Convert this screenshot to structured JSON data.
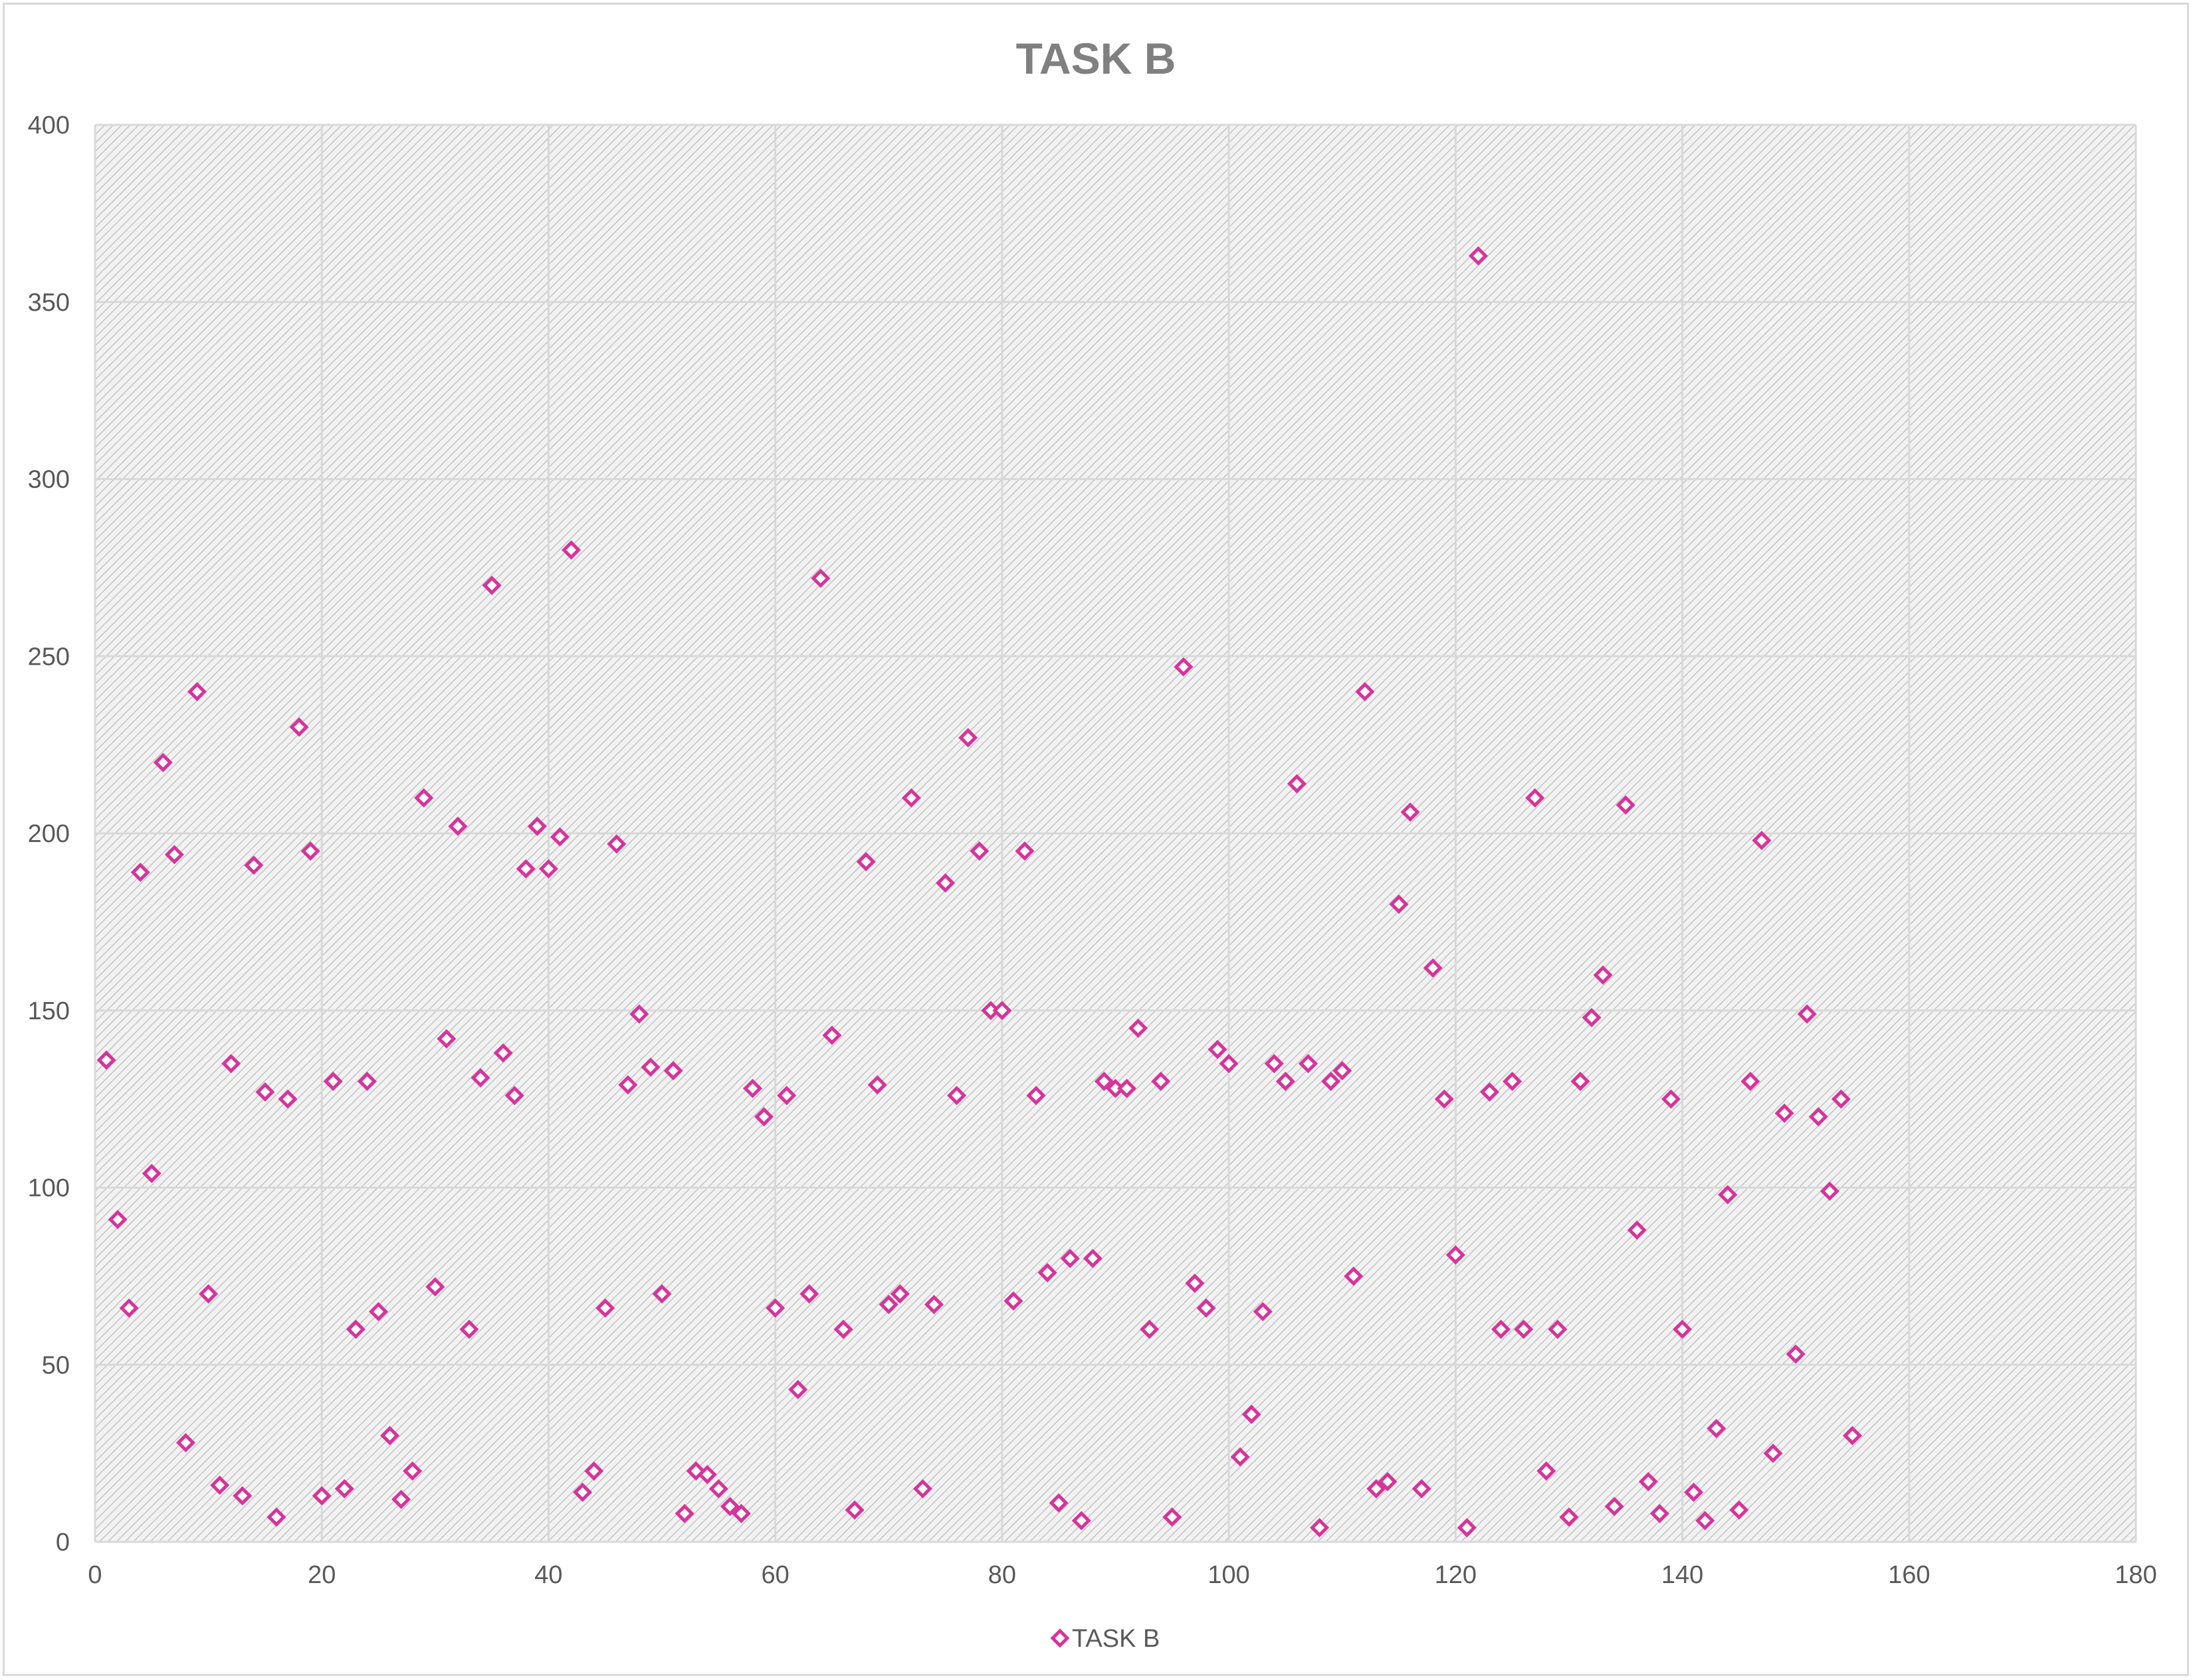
{
  "chart_data": {
    "type": "scatter",
    "title": "TASK B",
    "xlabel": "",
    "ylabel": "",
    "xlim": [
      0,
      180
    ],
    "ylim": [
      0,
      400
    ],
    "x_ticks": [
      0,
      20,
      40,
      60,
      80,
      100,
      120,
      140,
      160,
      180
    ],
    "y_ticks": [
      0,
      50,
      100,
      150,
      200,
      250,
      300,
      350,
      400
    ],
    "grid": true,
    "legend_position": "bottom",
    "marker": "hollow-diamond",
    "series": [
      {
        "name": "TASK B",
        "color": "#d6349b",
        "points": [
          [
            1,
            136
          ],
          [
            2,
            91
          ],
          [
            3,
            66
          ],
          [
            4,
            189
          ],
          [
            5,
            104
          ],
          [
            6,
            220
          ],
          [
            7,
            194
          ],
          [
            8,
            28
          ],
          [
            9,
            240
          ],
          [
            10,
            70
          ],
          [
            11,
            16
          ],
          [
            12,
            135
          ],
          [
            13,
            13
          ],
          [
            14,
            191
          ],
          [
            15,
            127
          ],
          [
            16,
            7
          ],
          [
            17,
            125
          ],
          [
            18,
            230
          ],
          [
            19,
            195
          ],
          [
            20,
            13
          ],
          [
            21,
            130
          ],
          [
            22,
            15
          ],
          [
            23,
            60
          ],
          [
            24,
            130
          ],
          [
            25,
            65
          ],
          [
            26,
            30
          ],
          [
            27,
            12
          ],
          [
            28,
            20
          ],
          [
            29,
            210
          ],
          [
            30,
            72
          ],
          [
            31,
            142
          ],
          [
            32,
            202
          ],
          [
            33,
            60
          ],
          [
            34,
            131
          ],
          [
            35,
            270
          ],
          [
            36,
            138
          ],
          [
            37,
            126
          ],
          [
            38,
            190
          ],
          [
            39,
            202
          ],
          [
            40,
            190
          ],
          [
            41,
            199
          ],
          [
            42,
            280
          ],
          [
            43,
            14
          ],
          [
            44,
            20
          ],
          [
            45,
            66
          ],
          [
            46,
            197
          ],
          [
            47,
            129
          ],
          [
            48,
            149
          ],
          [
            49,
            134
          ],
          [
            50,
            70
          ],
          [
            51,
            133
          ],
          [
            52,
            8
          ],
          [
            53,
            20
          ],
          [
            54,
            19
          ],
          [
            55,
            15
          ],
          [
            56,
            10
          ],
          [
            57,
            8
          ],
          [
            58,
            128
          ],
          [
            59,
            120
          ],
          [
            60,
            66
          ],
          [
            61,
            126
          ],
          [
            62,
            43
          ],
          [
            63,
            70
          ],
          [
            64,
            272
          ],
          [
            65,
            143
          ],
          [
            66,
            60
          ],
          [
            67,
            9
          ],
          [
            68,
            192
          ],
          [
            69,
            129
          ],
          [
            70,
            67
          ],
          [
            71,
            70
          ],
          [
            72,
            210
          ],
          [
            73,
            15
          ],
          [
            74,
            67
          ],
          [
            75,
            186
          ],
          [
            76,
            126
          ],
          [
            77,
            227
          ],
          [
            78,
            195
          ],
          [
            79,
            150
          ],
          [
            80,
            150
          ],
          [
            81,
            68
          ],
          [
            82,
            195
          ],
          [
            83,
            126
          ],
          [
            84,
            76
          ],
          [
            85,
            11
          ],
          [
            86,
            80
          ],
          [
            87,
            6
          ],
          [
            88,
            80
          ],
          [
            89,
            130
          ],
          [
            90,
            128
          ],
          [
            91,
            128
          ],
          [
            92,
            145
          ],
          [
            93,
            60
          ],
          [
            94,
            130
          ],
          [
            95,
            7
          ],
          [
            96,
            247
          ],
          [
            97,
            73
          ],
          [
            98,
            66
          ],
          [
            99,
            139
          ],
          [
            100,
            135
          ],
          [
            101,
            24
          ],
          [
            102,
            36
          ],
          [
            103,
            65
          ],
          [
            104,
            135
          ],
          [
            105,
            130
          ],
          [
            106,
            214
          ],
          [
            107,
            135
          ],
          [
            108,
            4
          ],
          [
            109,
            130
          ],
          [
            110,
            133
          ],
          [
            111,
            75
          ],
          [
            112,
            240
          ],
          [
            113,
            15
          ],
          [
            114,
            17
          ],
          [
            115,
            180
          ],
          [
            116,
            206
          ],
          [
            117,
            15
          ],
          [
            118,
            162
          ],
          [
            119,
            125
          ],
          [
            120,
            81
          ],
          [
            121,
            4
          ],
          [
            122,
            363
          ],
          [
            123,
            127
          ],
          [
            124,
            60
          ],
          [
            125,
            130
          ],
          [
            126,
            60
          ],
          [
            127,
            210
          ],
          [
            128,
            20
          ],
          [
            129,
            60
          ],
          [
            130,
            7
          ],
          [
            131,
            130
          ],
          [
            132,
            148
          ],
          [
            133,
            160
          ],
          [
            134,
            10
          ],
          [
            135,
            208
          ],
          [
            136,
            88
          ],
          [
            137,
            17
          ],
          [
            138,
            8
          ],
          [
            139,
            125
          ],
          [
            140,
            60
          ],
          [
            141,
            14
          ],
          [
            142,
            6
          ],
          [
            143,
            32
          ],
          [
            144,
            98
          ],
          [
            145,
            9
          ],
          [
            146,
            130
          ],
          [
            147,
            198
          ],
          [
            148,
            25
          ],
          [
            149,
            121
          ],
          [
            150,
            53
          ],
          [
            151,
            149
          ],
          [
            152,
            120
          ],
          [
            153,
            99
          ],
          [
            154,
            125
          ],
          [
            155,
            30
          ]
        ]
      }
    ]
  }
}
